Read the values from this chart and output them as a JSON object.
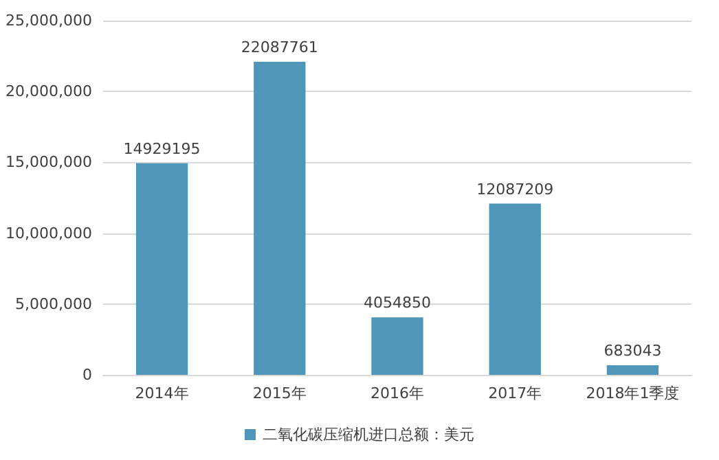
{
  "chart_data": {
    "type": "bar",
    "categories": [
      "2014年",
      "2015年",
      "2016年",
      "2017年",
      "2018年1季度"
    ],
    "series": [
      {
        "name": "二氧化碳压缩机进口总额：美元",
        "color": "#4f96b8",
        "values": [
          14929195,
          22087761,
          4054850,
          12087209,
          683043
        ]
      }
    ],
    "ylim": [
      0,
      25000000
    ],
    "yticks": [
      {
        "value": 0,
        "label": "0"
      },
      {
        "value": 5000000,
        "label": "5,000,000"
      },
      {
        "value": 10000000,
        "label": "10,000,000"
      },
      {
        "value": 15000000,
        "label": "15,000,000"
      },
      {
        "value": 20000000,
        "label": "20,000,000"
      },
      {
        "value": 25000000,
        "label": "25,000,000"
      }
    ],
    "grid": "y",
    "legend": "bottom",
    "data_labels": true
  }
}
